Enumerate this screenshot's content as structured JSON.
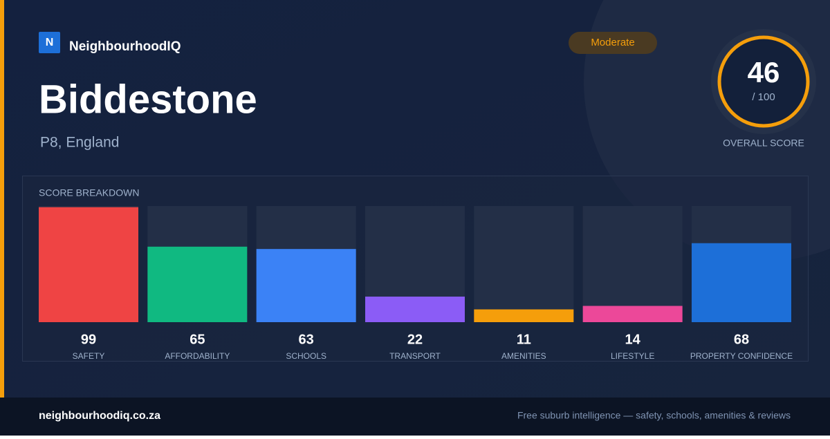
{
  "brand": {
    "logo": "N",
    "name": "NeighbourhoodIQ"
  },
  "title": "Biddestone",
  "location": "P8, England",
  "badge": "Moderate",
  "score": {
    "value": 46,
    "scale": {
      "value": 100,
      "label": "/ 100"
    },
    "caption": "OVERALL SCORE"
  },
  "breakdown": {
    "title": "SCORE BREAKDOWN",
    "items": [
      {
        "label": "SAFETY",
        "value": 99,
        "color": "#ef4444"
      },
      {
        "label": "AFFORDABILITY",
        "value": 65,
        "color": "#10b981"
      },
      {
        "label": "SCHOOLS",
        "value": 63,
        "color": "#3b82f6"
      },
      {
        "label": "TRANSPORT",
        "value": 22,
        "color": "#8b5cf6"
      },
      {
        "label": "AMENITIES",
        "value": 11,
        "color": "#f59e0b"
      },
      {
        "label": "LIFESTYLE",
        "value": 14,
        "color": "#ec4899"
      },
      {
        "label": "PROPERTY CONFIDENCE",
        "value": 68,
        "color": "#1d6fd8"
      }
    ]
  },
  "footer": {
    "site": "neighbourhoodiq.co.za",
    "tagline": "Free suburb intelligence — safety, schools, amenities & reviews"
  }
}
